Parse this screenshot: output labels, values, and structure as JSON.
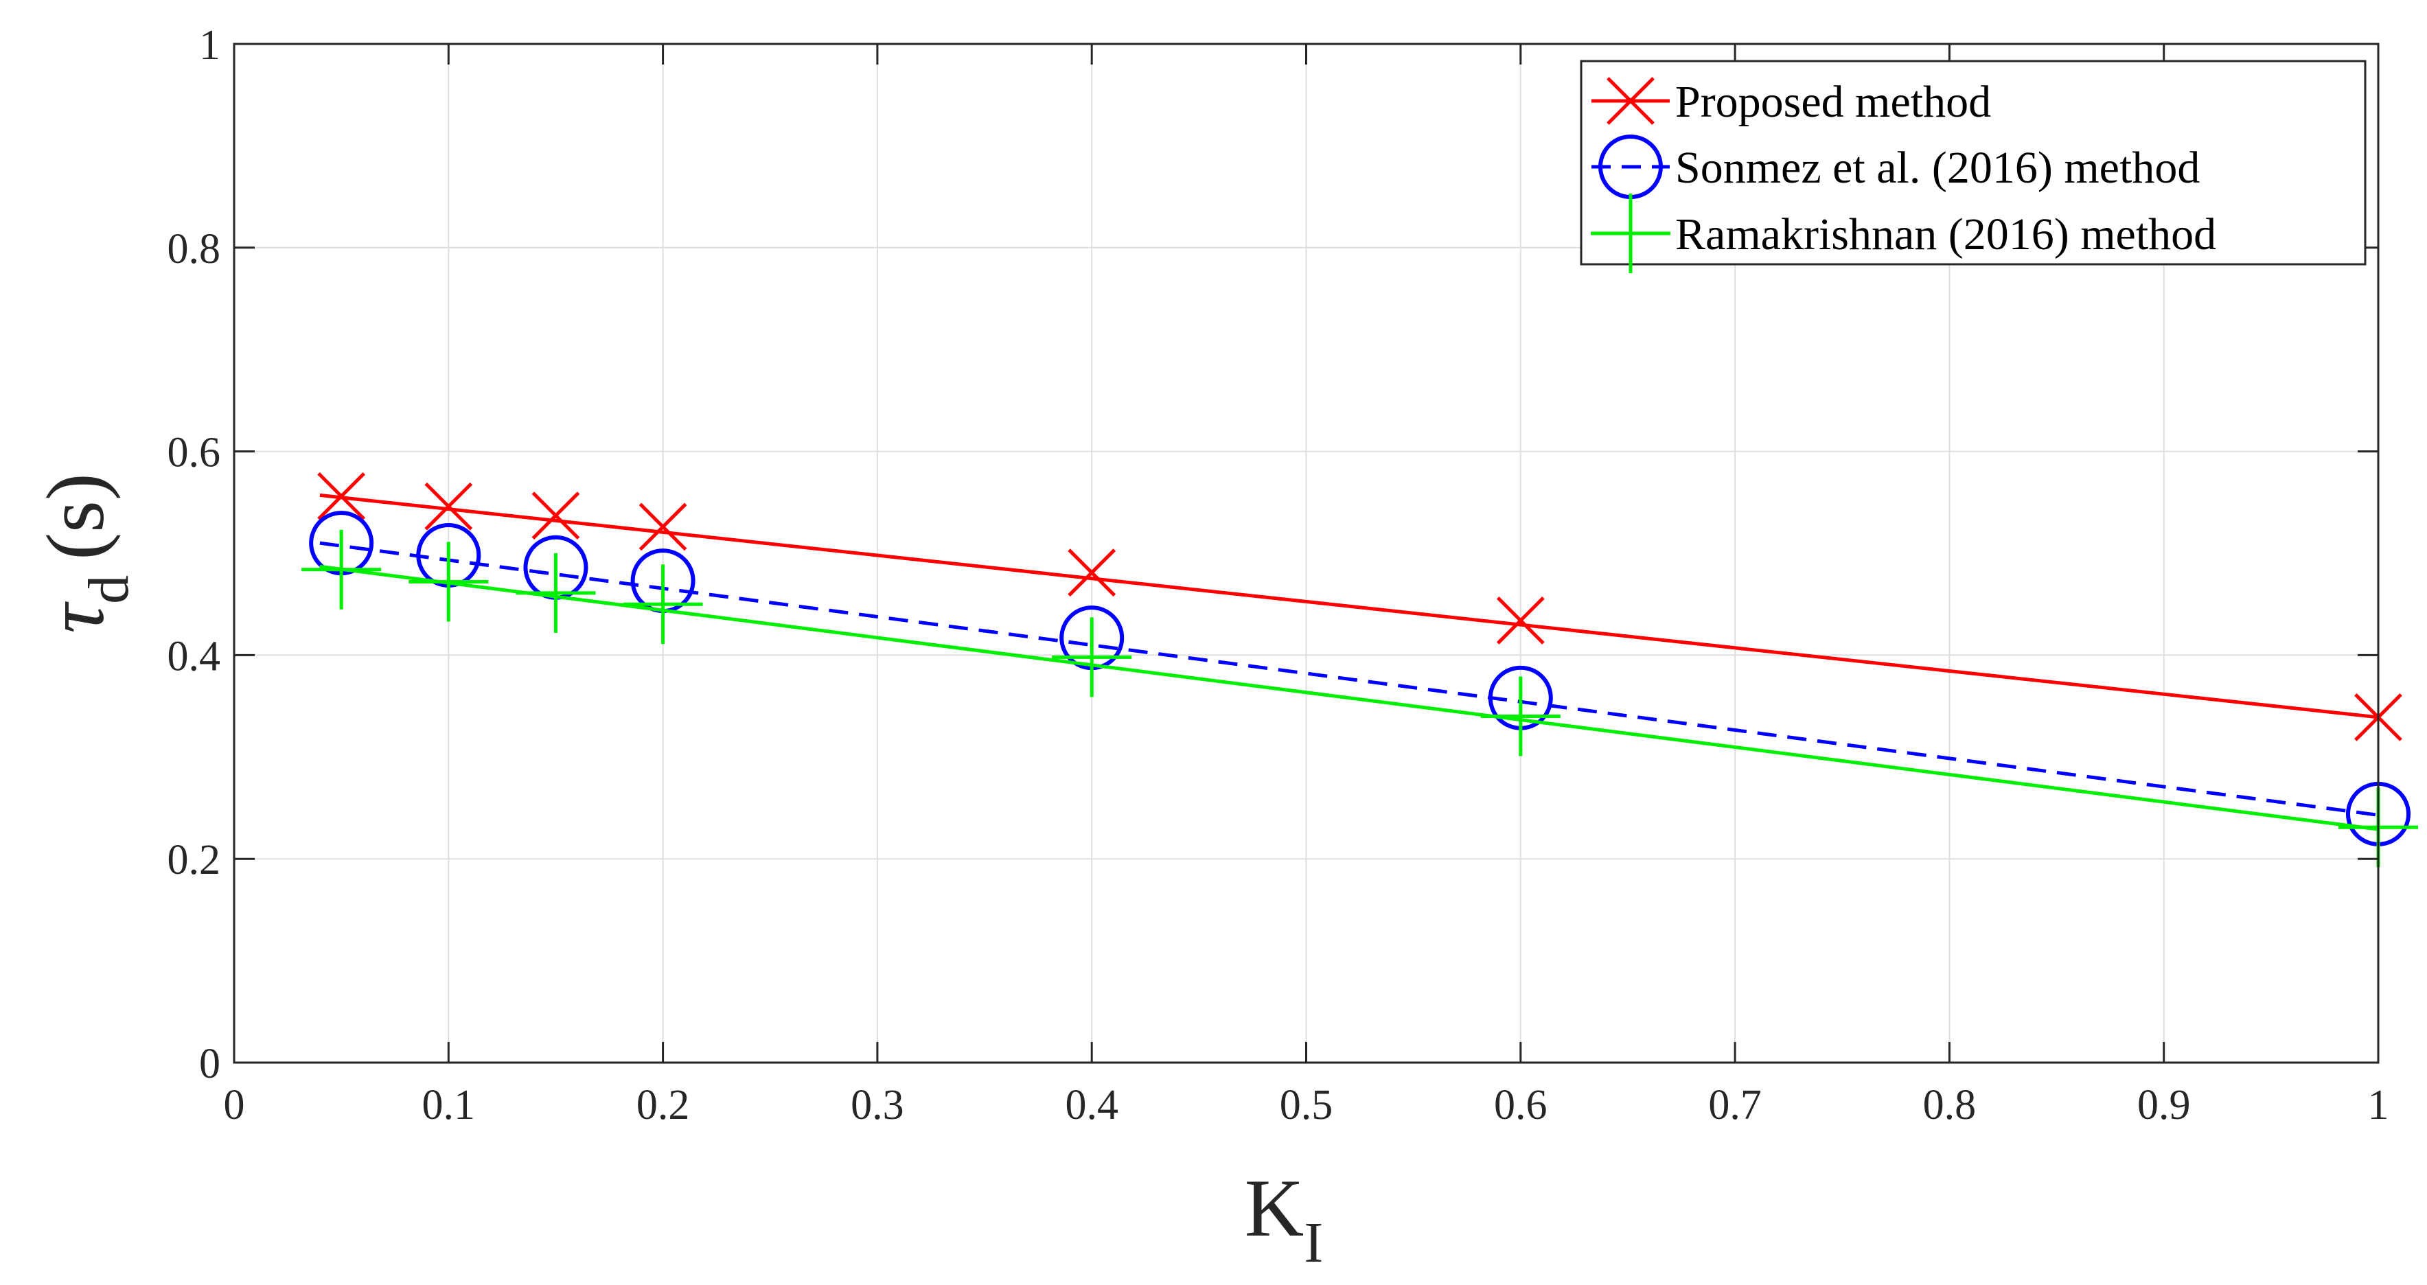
{
  "chart_data": {
    "type": "line",
    "title": "",
    "xlabel": "K",
    "xlabel_subscript": "I",
    "ylabel_symbol": "τ",
    "ylabel_subscript": "d",
    "ylabel_unit": "(s)",
    "xlim": [
      0,
      1
    ],
    "ylim": [
      0,
      1
    ],
    "xticks": [
      0,
      0.1,
      0.2,
      0.3,
      0.4,
      0.5,
      0.6,
      0.7,
      0.8,
      0.9,
      1
    ],
    "xtick_labels": [
      "0",
      "0.1",
      "0.2",
      "0.3",
      "0.4",
      "0.5",
      "0.6",
      "0.7",
      "0.8",
      "0.9",
      "1"
    ],
    "yticks": [
      0,
      0.2,
      0.4,
      0.6,
      0.8,
      1
    ],
    "ytick_labels": [
      "0",
      "0.2",
      "0.4",
      "0.6",
      "0.8",
      "1"
    ],
    "grid": true,
    "legend_position": "top-right",
    "series": [
      {
        "name": "Proposed method",
        "color": "#ff0000",
        "line_style": "solid",
        "marker": "x",
        "x": [
          0.05,
          0.1,
          0.15,
          0.2,
          0.4,
          0.6,
          1
        ],
        "y": [
          0.556,
          0.546,
          0.537,
          0.526,
          0.481,
          0.434,
          0.339
        ],
        "fit_line": {
          "x": [
            0.04,
            1
          ],
          "y": [
            0.557,
            0.339
          ]
        }
      },
      {
        "name": "Sonmez et al. (2016) method",
        "color": "#0000ff",
        "line_style": "dashed",
        "marker": "o",
        "x": [
          0.05,
          0.1,
          0.15,
          0.2,
          0.4,
          0.6,
          1
        ],
        "y": [
          0.51,
          0.498,
          0.486,
          0.473,
          0.417,
          0.358,
          0.244
        ],
        "fit_line": {
          "x": [
            0.04,
            1
          ],
          "y": [
            0.51,
            0.243
          ]
        }
      },
      {
        "name": "Ramakrishnan (2016) method",
        "color": "#00ee00",
        "line_style": "solid",
        "marker": "+",
        "x": [
          0.05,
          0.1,
          0.15,
          0.2,
          0.4,
          0.6,
          1
        ],
        "y": [
          0.484,
          0.472,
          0.461,
          0.45,
          0.398,
          0.34,
          0.231
        ],
        "fit_line": {
          "x": [
            0.04,
            1
          ],
          "y": [
            0.487,
            0.229
          ]
        }
      }
    ]
  }
}
